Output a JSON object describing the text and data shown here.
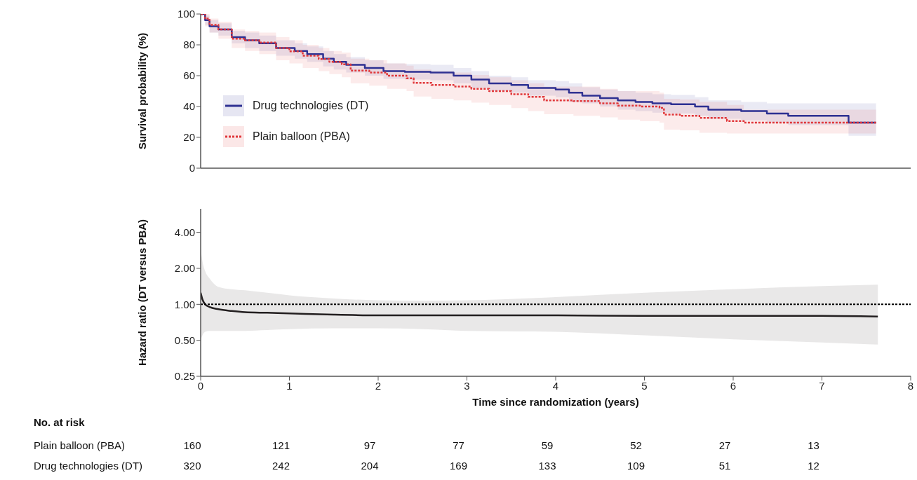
{
  "chart_data": [
    {
      "type": "step",
      "ylabel": "Survival probability (%)",
      "xlim": [
        0,
        8
      ],
      "ylim": [
        0,
        100
      ],
      "yticks": [
        0,
        20,
        40,
        60,
        80,
        100
      ],
      "tick_labels": "y",
      "legend": "left",
      "series": [
        {
          "name": "Drug technologies (DT)",
          "color": "#2e3192",
          "line_style": "solid",
          "x": [
            0,
            0.05,
            0.1,
            0.2,
            0.35,
            0.5,
            0.66,
            0.85,
            1.06,
            1.2,
            1.38,
            1.5,
            1.64,
            1.85,
            2.06,
            2.3,
            2.59,
            2.85,
            3.05,
            3.25,
            3.5,
            3.69,
            4.0,
            4.15,
            4.3,
            4.5,
            4.7,
            4.9,
            5.09,
            5.3,
            5.57,
            5.72,
            6.09,
            6.38,
            6.62,
            7.3,
            7.61
          ],
          "values": [
            100,
            96,
            92,
            90,
            85,
            83,
            81,
            78,
            76,
            74,
            71,
            69,
            67,
            65,
            63,
            62.5,
            62,
            60,
            57.5,
            55,
            54,
            52,
            51,
            49,
            47,
            45.5,
            44,
            43,
            42,
            41.5,
            40,
            38,
            37,
            35.5,
            34,
            29.5,
            29.5
          ],
          "upper": [
            100,
            99,
            96,
            94,
            89,
            88,
            86,
            83,
            81,
            79,
            76,
            74,
            72,
            70,
            68,
            67.5,
            67,
            65,
            63,
            60,
            59,
            57,
            56.5,
            55,
            52.5,
            51,
            50,
            49,
            48,
            47.5,
            46,
            44,
            43,
            42,
            42,
            42,
            42
          ],
          "lower": [
            100,
            93,
            88,
            86,
            81,
            78,
            76,
            73,
            71,
            69,
            66,
            64,
            62,
            60,
            58,
            57.5,
            57,
            55,
            52,
            50,
            49,
            47,
            46,
            43,
            42,
            40,
            38,
            37,
            36,
            35.5,
            34,
            32,
            31,
            29.5,
            28,
            21,
            21
          ]
        },
        {
          "name": "Plain balloon (PBA)",
          "color": "#e0373a",
          "line_style": "dotted",
          "x": [
            0,
            0.05,
            0.1,
            0.2,
            0.35,
            0.5,
            0.66,
            0.85,
            1.0,
            1.15,
            1.33,
            1.45,
            1.59,
            1.69,
            1.9,
            2.1,
            2.32,
            2.4,
            2.6,
            2.85,
            3.05,
            3.25,
            3.5,
            3.69,
            3.87,
            4.2,
            4.5,
            4.7,
            4.95,
            5.17,
            5.22,
            5.4,
            5.62,
            5.93,
            6.12,
            7.61
          ],
          "values": [
            100,
            97,
            93,
            90,
            84,
            83,
            81.5,
            78,
            75.8,
            73,
            70.8,
            69,
            67.4,
            63.3,
            62,
            60,
            58.3,
            55.3,
            54,
            53,
            51.5,
            50,
            48,
            46.2,
            44,
            43.5,
            42,
            40.6,
            40,
            39.1,
            34.8,
            34,
            32.6,
            30.6,
            29.5,
            29.5
          ],
          "upper": [
            100,
            100,
            97,
            95,
            90,
            89,
            88,
            85,
            83,
            80,
            78,
            76,
            75,
            71,
            70,
            68,
            66.5,
            64,
            63,
            62,
            60.5,
            59,
            57,
            55,
            53,
            53,
            51.5,
            50,
            50,
            49,
            45,
            44.5,
            43,
            41,
            38,
            38
          ],
          "lower": [
            100,
            92,
            88,
            84,
            78,
            76,
            74,
            70,
            68,
            65,
            63,
            61,
            59,
            55,
            53.5,
            51.5,
            50,
            46.5,
            45,
            44,
            42.5,
            41,
            39,
            37,
            35,
            34,
            33,
            31.5,
            30.5,
            29.5,
            25,
            24.5,
            23,
            22.5,
            22.5,
            22.5
          ]
        }
      ]
    },
    {
      "type": "line",
      "xlabel": "Time since randomization (years)",
      "ylabel": "Hazard ratio (DT versus PBA)",
      "log": true,
      "xlim": [
        0,
        8
      ],
      "xticks": [
        0,
        1,
        2,
        3,
        4,
        5,
        6,
        7,
        8
      ],
      "ylim": [
        0.25,
        6.3
      ],
      "yticks": [
        {
          "value": 0.25,
          "label": "0.25"
        },
        {
          "value": 0.5,
          "label": "0.50"
        },
        {
          "value": 1,
          "label": "1.00"
        },
        {
          "value": 2,
          "label": "2.00"
        },
        {
          "value": 4,
          "label": "4.00"
        }
      ],
      "ref_lines": [
        {
          "axis": "y",
          "value": 1,
          "color": "#000000",
          "line_style": "dotted"
        }
      ],
      "series": [
        {
          "color": "#231f20",
          "x": [
            0,
            0.02,
            0.05,
            0.1,
            0.2,
            0.35,
            0.5,
            0.75,
            1,
            1.5,
            2,
            2.5,
            3,
            4,
            5,
            6,
            7,
            7.63
          ],
          "values": [
            1.25,
            1.1,
            1.0,
            0.95,
            0.91,
            0.88,
            0.86,
            0.85,
            0.84,
            0.82,
            0.81,
            0.81,
            0.81,
            0.81,
            0.8,
            0.8,
            0.8,
            0.79
          ],
          "upper": [
            2.9,
            2.3,
            1.9,
            1.65,
            1.4,
            1.34,
            1.31,
            1.25,
            1.19,
            1.12,
            1.08,
            1.07,
            1.08,
            1.15,
            1.25,
            1.34,
            1.42,
            1.46
          ],
          "lower": [
            0.5,
            0.55,
            0.59,
            0.6,
            0.6,
            0.6,
            0.6,
            0.61,
            0.62,
            0.63,
            0.63,
            0.62,
            0.6,
            0.59,
            0.55,
            0.51,
            0.48,
            0.46
          ]
        }
      ],
      "annotations": [
        "No. at risk",
        "Plain balloon (PBA)",
        "160",
        "121",
        "97",
        "77",
        "59",
        "52",
        "27",
        "13",
        "Drug technologies (DT)",
        "320",
        "242",
        "204",
        "169",
        "133",
        "109",
        "51",
        "12"
      ]
    }
  ]
}
